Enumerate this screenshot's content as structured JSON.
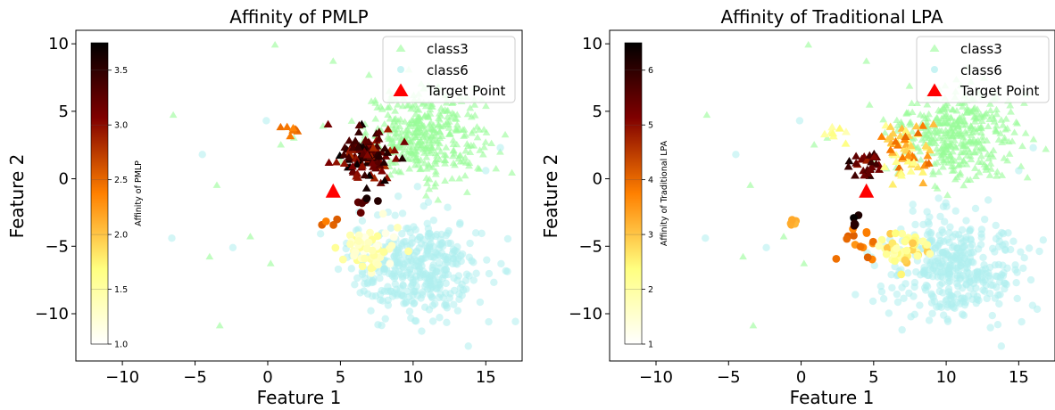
{
  "chart_data": [
    {
      "type": "scatter",
      "title": "Affinity of PMLP",
      "xlabel": "Feature 1",
      "ylabel": "Feature 2",
      "xlim": [
        -13.2,
        17.5
      ],
      "ylim": [
        -13.5,
        11.0
      ],
      "xticks": [
        -10,
        -5,
        0,
        5,
        10,
        15
      ],
      "yticks": [
        10,
        5,
        0,
        -5,
        -10
      ],
      "xtick_labels": [
        "−10",
        "−5",
        "0",
        "5",
        "10",
        "15"
      ],
      "ytick_labels": [
        "10",
        "5",
        "0",
        "−5",
        "−10"
      ],
      "legend": {
        "position": "top-right",
        "entries": [
          "class3",
          "class6",
          "Target Point"
        ]
      },
      "colorbar": {
        "label": "Affinity of PMLP",
        "min": 1.0,
        "max": 3.75,
        "position": "top-left",
        "ticks": [
          1.0,
          1.5,
          2.0,
          2.5,
          3.0,
          3.5
        ],
        "tick_labels": [
          "1.0",
          "1.5",
          "2.0",
          "2.5",
          "3.0",
          "3.5"
        ],
        "colormap": "afmhot_r"
      },
      "target_point": {
        "x": 4.5,
        "y": -1.0
      },
      "series": [
        {
          "name": "class3",
          "marker": "triangle",
          "color": "#98fb98",
          "cluster": {
            "center": [
              10.8,
              3.3
            ],
            "spread": [
              2.0,
              1.6
            ],
            "count": 380
          },
          "outliers": [
            [
              -6.5,
              4.7
            ],
            [
              0.5,
              9.9
            ],
            [
              4.5,
              8.7
            ],
            [
              -3.5,
              -0.5
            ],
            [
              -4.0,
              -5.8
            ],
            [
              -3.3,
              -10.9
            ],
            [
              0.2,
              -6.3
            ],
            [
              0.9,
              2.5
            ],
            [
              1.8,
              3.0
            ],
            [
              -1.2,
              -4.3
            ]
          ]
        },
        {
          "name": "class6",
          "marker": "circle",
          "color": "#afeeee",
          "cluster": {
            "center": [
              10.3,
              -6.6
            ],
            "spread": [
              2.3,
              1.9
            ],
            "count": 380
          },
          "outliers": [
            [
              -6.6,
              -4.4
            ],
            [
              -4.5,
              1.8
            ],
            [
              -0.1,
              4.3
            ],
            [
              -2.4,
              -5.1
            ],
            [
              13.8,
              -12.4
            ],
            [
              15.0,
              0.6
            ],
            [
              16.0,
              2.3
            ],
            [
              15.2,
              -10.6
            ]
          ]
        }
      ],
      "highlight_groups": [
        {
          "marker": "triangle",
          "count": 130,
          "center": [
            6.8,
            1.6
          ],
          "spread": [
            1.2,
            1.3
          ],
          "value_range": [
            2.8,
            3.75
          ]
        },
        {
          "marker": "triangle",
          "count": 8,
          "center": [
            1.8,
            3.6
          ],
          "spread": [
            0.8,
            0.3
          ],
          "value_range": [
            2.3,
            2.6
          ]
        },
        {
          "marker": "circle",
          "count": 55,
          "center": [
            7.3,
            -5.2
          ],
          "spread": [
            1.6,
            1.1
          ],
          "value_range": [
            1.1,
            1.6
          ]
        },
        {
          "marker": "circle",
          "count": 6,
          "center": [
            6.5,
            -1.8
          ],
          "spread": [
            1.0,
            0.6
          ],
          "value_range": [
            3.2,
            3.7
          ]
        },
        {
          "marker": "circle",
          "count": 4,
          "center": [
            4.4,
            -3.3
          ],
          "spread": [
            0.4,
            0.5
          ],
          "value_range": [
            2.3,
            2.6
          ]
        }
      ]
    },
    {
      "type": "scatter",
      "title": "Affinity of Traditional LPA",
      "xlabel": "Feature 1",
      "ylabel": "Feature 2",
      "xlim": [
        -13.2,
        17.5
      ],
      "ylim": [
        -13.5,
        11.0
      ],
      "xticks": [
        -10,
        -5,
        0,
        5,
        10,
        15
      ],
      "yticks": [
        10,
        5,
        0,
        -5,
        -10
      ],
      "xtick_labels": [
        "−10",
        "−5",
        "0",
        "5",
        "10",
        "15"
      ],
      "ytick_labels": [
        "10",
        "5",
        "0",
        "−5",
        "−10"
      ],
      "legend": {
        "position": "top-right",
        "entries": [
          "class3",
          "class6",
          "Target Point"
        ]
      },
      "colorbar": {
        "label": "Affinity of Traditional LPA",
        "min": 1.0,
        "max": 6.5,
        "position": "top-left",
        "ticks": [
          1,
          2,
          3,
          4,
          5,
          6
        ],
        "tick_labels": [
          "1",
          "2",
          "3",
          "4",
          "5",
          "6"
        ],
        "colormap": "afmhot_r"
      },
      "target_point": {
        "x": 4.5,
        "y": -1.0
      },
      "series": [
        {
          "name": "class3",
          "marker": "triangle",
          "color": "#98fb98",
          "cluster": {
            "center": [
              10.8,
              3.3
            ],
            "spread": [
              2.0,
              1.6
            ],
            "count": 380
          },
          "outliers": [
            [
              -6.5,
              4.7
            ],
            [
              0.5,
              9.9
            ],
            [
              4.5,
              8.7
            ],
            [
              -3.5,
              -0.5
            ],
            [
              -4.0,
              -5.8
            ],
            [
              -3.3,
              -10.9
            ],
            [
              0.2,
              -6.3
            ],
            [
              0.9,
              2.5
            ],
            [
              1.8,
              3.0
            ],
            [
              -1.2,
              -4.3
            ]
          ]
        },
        {
          "name": "class6",
          "marker": "circle",
          "color": "#afeeee",
          "cluster": {
            "center": [
              10.3,
              -6.6
            ],
            "spread": [
              2.3,
              1.9
            ],
            "count": 380
          },
          "outliers": [
            [
              -6.6,
              -4.4
            ],
            [
              -4.5,
              1.8
            ],
            [
              -0.1,
              4.3
            ],
            [
              -2.4,
              -5.1
            ],
            [
              13.8,
              -12.4
            ],
            [
              15.0,
              0.6
            ],
            [
              16.0,
              2.3
            ],
            [
              15.2,
              -10.6
            ]
          ]
        }
      ],
      "highlight_groups": [
        {
          "marker": "triangle",
          "count": 30,
          "center": [
            4.6,
            1.1
          ],
          "spread": [
            0.8,
            0.8
          ],
          "value_range": [
            4.8,
            6.5
          ]
        },
        {
          "marker": "triangle",
          "count": 70,
          "center": [
            7.3,
            2.0
          ],
          "spread": [
            1.2,
            1.4
          ],
          "value_range": [
            2.0,
            4.0
          ]
        },
        {
          "marker": "triangle",
          "count": 8,
          "center": [
            2.5,
            3.4
          ],
          "spread": [
            1.0,
            0.5
          ],
          "value_range": [
            1.8,
            2.6
          ]
        },
        {
          "marker": "circle",
          "count": 14,
          "center": [
            4.2,
            -5.0
          ],
          "spread": [
            1.2,
            1.0
          ],
          "value_range": [
            3.5,
            4.2
          ]
        },
        {
          "marker": "circle",
          "count": 45,
          "center": [
            7.2,
            -5.2
          ],
          "spread": [
            1.3,
            1.0
          ],
          "value_range": [
            1.8,
            3.0
          ]
        },
        {
          "marker": "circle",
          "count": 5,
          "center": [
            3.7,
            -3.2
          ],
          "spread": [
            0.3,
            0.3
          ],
          "value_range": [
            5.8,
            6.5
          ]
        },
        {
          "marker": "circle",
          "count": 5,
          "center": [
            -0.5,
            -3.2
          ],
          "spread": [
            0.3,
            0.3
          ],
          "value_range": [
            3.0,
            3.3
          ]
        }
      ]
    }
  ]
}
